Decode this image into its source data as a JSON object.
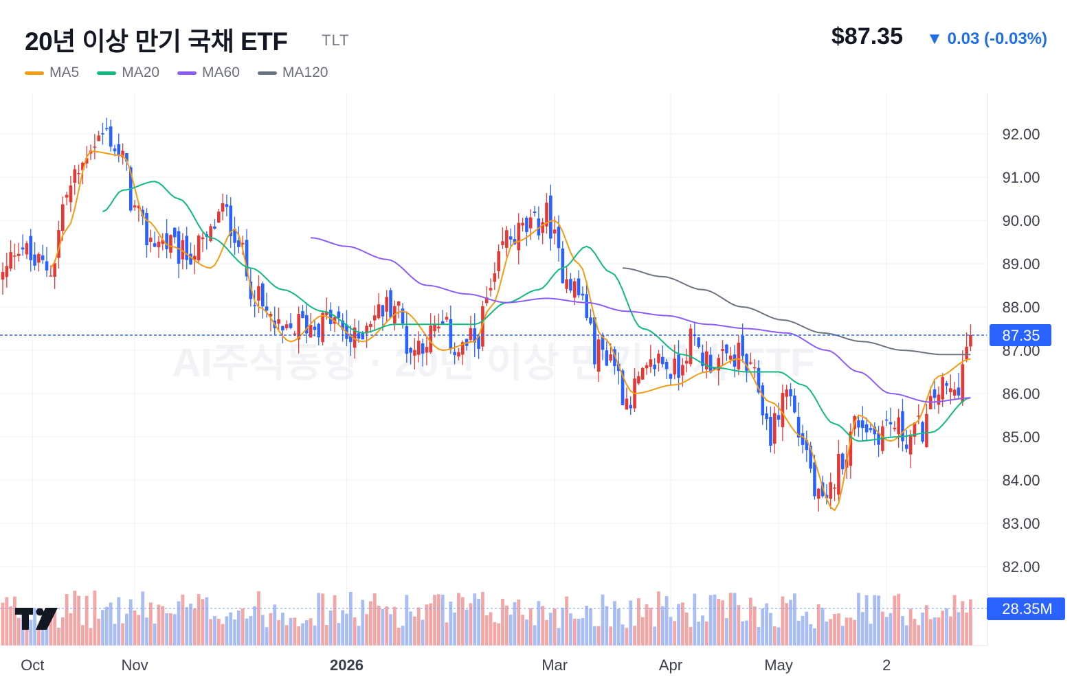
{
  "header": {
    "title": "20년 이상 만기 국채 ETF",
    "ticker": "TLT",
    "price": "$87.35",
    "change": "▼ 0.03 (-0.03%)"
  },
  "legend": [
    {
      "label": "MA5",
      "color": "#f39c12"
    },
    {
      "label": "MA20",
      "color": "#10b981"
    },
    {
      "label": "MA60",
      "color": "#8b5cf6"
    },
    {
      "label": "MA120",
      "color": "#6b7280"
    }
  ],
  "watermark": "AI주식동향 · 20년 이상 만기 국채 ETF",
  "colors": {
    "up": "#e53935",
    "down": "#2962ff",
    "grid": "#eef0f3",
    "price_line": "#2962ff"
  },
  "chart_data": {
    "type": "candlestick",
    "y_axis": {
      "range": [
        81.0,
        93.0
      ],
      "ticks": [
        92.0,
        91.0,
        90.0,
        89.0,
        88.0,
        87.0,
        86.0,
        85.0,
        84.0,
        83.0,
        82.0
      ]
    },
    "x_axis": {
      "tick_labels": [
        {
          "label": "Oct",
          "index": 4
        },
        {
          "label": "Nov",
          "index": 33
        },
        {
          "label": "2026",
          "index": 86
        },
        {
          "label": "Mar",
          "index": 138
        },
        {
          "label": "Apr",
          "index": 167
        },
        {
          "label": "May",
          "index": 194
        },
        {
          "label": "2",
          "index": 221
        }
      ]
    },
    "last_price": 87.35,
    "last_price_label": "87.35",
    "last_volume_label": "28.35M",
    "series": [
      {
        "name": "MA5",
        "anchors": [
          [
            12,
            88.9
          ],
          [
            16,
            89.8
          ],
          [
            22,
            91.6
          ],
          [
            30,
            91.5
          ],
          [
            36,
            90.0
          ],
          [
            42,
            89.4
          ],
          [
            52,
            88.9
          ],
          [
            58,
            89.8
          ],
          [
            64,
            88.0
          ],
          [
            72,
            87.2
          ],
          [
            80,
            87.8
          ],
          [
            90,
            87.2
          ],
          [
            100,
            87.9
          ],
          [
            110,
            87.0
          ],
          [
            118,
            87.2
          ],
          [
            122,
            88.0
          ],
          [
            128,
            89.5
          ],
          [
            138,
            90.0
          ],
          [
            144,
            89.0
          ],
          [
            150,
            87.3
          ],
          [
            158,
            86.0
          ],
          [
            168,
            86.2
          ],
          [
            176,
            86.5
          ],
          [
            184,
            86.8
          ],
          [
            192,
            85.8
          ],
          [
            200,
            85.0
          ],
          [
            208,
            83.3
          ],
          [
            214,
            85.5
          ],
          [
            222,
            84.9
          ],
          [
            228,
            85.3
          ],
          [
            234,
            86.4
          ],
          [
            242,
            86.8
          ]
        ]
      },
      {
        "name": "MA20",
        "anchors": [
          [
            25,
            90.2
          ],
          [
            30,
            90.7
          ],
          [
            38,
            90.9
          ],
          [
            44,
            90.5
          ],
          [
            52,
            89.6
          ],
          [
            62,
            88.9
          ],
          [
            70,
            88.4
          ],
          [
            80,
            87.9
          ],
          [
            90,
            87.4
          ],
          [
            98,
            87.6
          ],
          [
            108,
            87.6
          ],
          [
            118,
            87.6
          ],
          [
            126,
            88.1
          ],
          [
            134,
            88.4
          ],
          [
            140,
            88.9
          ],
          [
            146,
            89.4
          ],
          [
            152,
            88.8
          ],
          [
            160,
            87.5
          ],
          [
            170,
            86.9
          ],
          [
            178,
            86.6
          ],
          [
            186,
            86.5
          ],
          [
            194,
            86.5
          ],
          [
            200,
            86.2
          ],
          [
            208,
            85.3
          ],
          [
            214,
            84.9
          ],
          [
            224,
            85.0
          ],
          [
            232,
            85.1
          ],
          [
            242,
            85.9
          ]
        ]
      },
      {
        "name": "MA60",
        "anchors": [
          [
            77,
            89.6
          ],
          [
            86,
            89.4
          ],
          [
            96,
            89.1
          ],
          [
            106,
            88.5
          ],
          [
            116,
            88.3
          ],
          [
            126,
            88.1
          ],
          [
            136,
            88.2
          ],
          [
            146,
            88.1
          ],
          [
            156,
            87.9
          ],
          [
            166,
            87.8
          ],
          [
            176,
            87.6
          ],
          [
            186,
            87.5
          ],
          [
            196,
            87.4
          ],
          [
            206,
            87.0
          ],
          [
            214,
            86.5
          ],
          [
            222,
            86.0
          ],
          [
            232,
            85.8
          ],
          [
            242,
            85.9
          ]
        ]
      },
      {
        "name": "MA120",
        "anchors": [
          [
            155,
            88.9
          ],
          [
            165,
            88.7
          ],
          [
            175,
            88.4
          ],
          [
            185,
            88.0
          ],
          [
            195,
            87.7
          ],
          [
            205,
            87.4
          ],
          [
            215,
            87.2
          ],
          [
            225,
            87.0
          ],
          [
            235,
            86.9
          ],
          [
            242,
            86.9
          ]
        ]
      }
    ],
    "candle_path": [
      [
        0,
        88.7
      ],
      [
        4,
        89.5
      ],
      [
        8,
        89.0
      ],
      [
        12,
        88.9
      ],
      [
        16,
        90.6
      ],
      [
        19,
        91.1
      ],
      [
        22,
        91.8
      ],
      [
        26,
        92.0
      ],
      [
        30,
        91.4
      ],
      [
        33,
        90.2
      ],
      [
        36,
        89.6
      ],
      [
        40,
        89.5
      ],
      [
        45,
        89.2
      ],
      [
        50,
        89.4
      ],
      [
        55,
        90.2
      ],
      [
        58,
        89.8
      ],
      [
        62,
        88.5
      ],
      [
        66,
        87.8
      ],
      [
        70,
        87.3
      ],
      [
        74,
        87.6
      ],
      [
        78,
        87.6
      ],
      [
        82,
        87.7
      ],
      [
        88,
        87.2
      ],
      [
        92,
        87.8
      ],
      [
        98,
        88.1
      ],
      [
        102,
        87.0
      ],
      [
        106,
        87.3
      ],
      [
        110,
        87.5
      ],
      [
        114,
        87.0
      ],
      [
        118,
        87.2
      ],
      [
        122,
        88.3
      ],
      [
        126,
        89.6
      ],
      [
        132,
        89.8
      ],
      [
        136,
        90.1
      ],
      [
        140,
        88.9
      ],
      [
        145,
        88.2
      ],
      [
        148,
        87.0
      ],
      [
        152,
        86.9
      ],
      [
        156,
        85.9
      ],
      [
        160,
        86.3
      ],
      [
        164,
        86.8
      ],
      [
        168,
        86.5
      ],
      [
        172,
        87.2
      ],
      [
        176,
        86.8
      ],
      [
        180,
        86.7
      ],
      [
        184,
        86.9
      ],
      [
        188,
        86.3
      ],
      [
        192,
        85.1
      ],
      [
        196,
        86.1
      ],
      [
        200,
        84.9
      ],
      [
        204,
        83.5
      ],
      [
        206,
        83.3
      ],
      [
        208,
        84.1
      ],
      [
        210,
        84.6
      ],
      [
        214,
        85.4
      ],
      [
        218,
        85.1
      ],
      [
        222,
        85.3
      ],
      [
        226,
        85.0
      ],
      [
        230,
        85.2
      ],
      [
        234,
        86.1
      ],
      [
        238,
        86.0
      ],
      [
        240,
        86.6
      ],
      [
        242,
        87.35
      ]
    ],
    "volume_range_label": "28.35M"
  }
}
